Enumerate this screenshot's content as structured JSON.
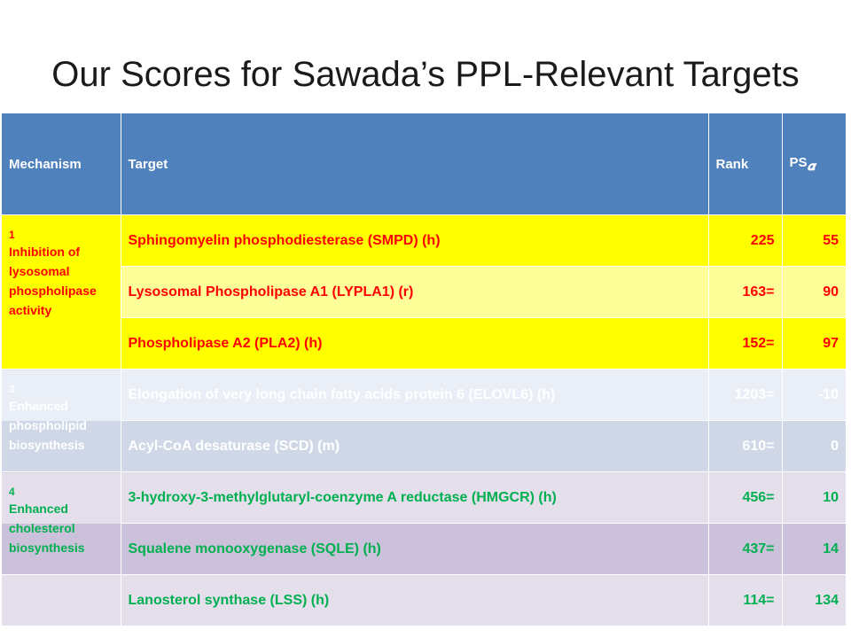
{
  "title": "Our Scores for  Sawada’s PPL-Relevant Targets",
  "headers": {
    "mechanism": "Mechanism",
    "target": "Target",
    "rank": "Rank",
    "ps": "PS",
    "ps_sub": "𝜶"
  },
  "colors": {
    "header_bg": "#4f81bd",
    "yellow": "#ffff00",
    "light_yellow": "#ffff99",
    "light_blue": "#e9eef7",
    "blue_grey": "#d0d8e8",
    "light_purple": "#e5dfec",
    "purple": "#ccc1da",
    "red_text": "#ff0000",
    "white_text": "#ffffff",
    "green_text": "#00b050"
  },
  "groups": [
    {
      "num": "1",
      "label": "Inhibition  of lysosomal phospholipase activity"
    },
    {
      "num": "3",
      "label": "Enhanced phospholipid biosynthesis"
    },
    {
      "num": "4",
      "label": "Enhanced cholesterol biosynthesis"
    }
  ],
  "rows": [
    {
      "target": "Sphingomyelin phosphodiesterase (SMPD) (h)",
      "rank": "225",
      "ps": "55"
    },
    {
      "target": "Lysosomal Phospholipase A1 (LYPLA1) (r)",
      "rank": "163=",
      "ps": "90"
    },
    {
      "target": "Phospholipase A2 (PLA2)  (h)",
      "rank": "152=",
      "ps": "97"
    },
    {
      "target": "Elongation of very long chain fatty acids protein 6 (ELOVL6) (h)",
      "rank": "1203=",
      "ps": "-10"
    },
    {
      "target": "Acyl-CoA desaturase (SCD) (m)",
      "rank": "610=",
      "ps": "0"
    },
    {
      "target": "3-hydroxy-3-methylglutaryl-coenzyme A reductase (HMGCR) (h)",
      "rank": "456=",
      "ps": "10"
    },
    {
      "target": "Squalene monooxygenase (SQLE) (h)",
      "rank": "437=",
      "ps": "14"
    },
    {
      "target": "Lanosterol synthase (LSS) (h)",
      "rank": "114=",
      "ps": "134"
    }
  ]
}
